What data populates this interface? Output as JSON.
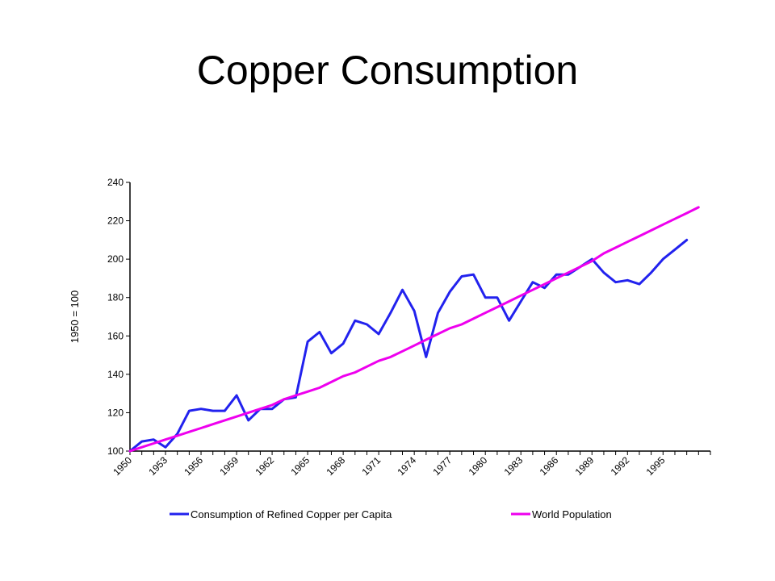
{
  "slide": {
    "title": "Copper Consumption"
  },
  "chart_data": {
    "type": "line",
    "ylabel": "1950 = 100",
    "xlabel": "",
    "ylim": [
      100,
      240
    ],
    "yticks": [
      100,
      120,
      140,
      160,
      180,
      200,
      220,
      240
    ],
    "xrange": [
      1950,
      1999
    ],
    "xtick_labels": [
      "1950",
      "1953",
      "1956",
      "1959",
      "1962",
      "1965",
      "1968",
      "1971",
      "1974",
      "1977",
      "1980",
      "1983",
      "1986",
      "1989",
      "1992",
      "1995"
    ],
    "grid": false,
    "legend_position": "bottom",
    "x": [
      1950,
      1951,
      1952,
      1953,
      1954,
      1955,
      1956,
      1957,
      1958,
      1959,
      1960,
      1961,
      1962,
      1963,
      1964,
      1965,
      1966,
      1967,
      1968,
      1969,
      1970,
      1971,
      1972,
      1973,
      1974,
      1975,
      1976,
      1977,
      1978,
      1979,
      1980,
      1981,
      1982,
      1983,
      1984,
      1985,
      1986,
      1987,
      1988,
      1989,
      1990,
      1991,
      1992,
      1993,
      1994,
      1995,
      1996,
      1997,
      1998
    ],
    "series": [
      {
        "name": "Consumption of Refined Copper per Capita",
        "color": "#2222ee",
        "values": [
          100,
          105,
          106,
          102,
          109,
          121,
          122,
          121,
          121,
          129,
          116,
          122,
          122,
          127,
          128,
          157,
          162,
          151,
          156,
          168,
          166,
          161,
          172,
          184,
          173,
          149,
          172,
          183,
          191,
          192,
          180,
          180,
          168,
          178,
          188,
          185,
          192,
          192,
          196,
          200,
          193,
          188,
          189,
          187,
          193,
          200,
          205,
          210,
          null
        ]
      },
      {
        "name": "World Population",
        "color": "#ee00ee",
        "values": [
          100,
          102,
          104,
          106,
          108,
          110,
          112,
          114,
          116,
          118,
          120,
          122,
          124,
          127,
          129,
          131,
          133,
          136,
          139,
          141,
          144,
          147,
          149,
          152,
          155,
          158,
          161,
          164,
          166,
          169,
          172,
          175,
          178,
          181,
          184,
          187,
          190,
          193,
          196,
          199,
          203,
          206,
          209,
          212,
          215,
          218,
          221,
          224,
          227
        ]
      }
    ]
  }
}
